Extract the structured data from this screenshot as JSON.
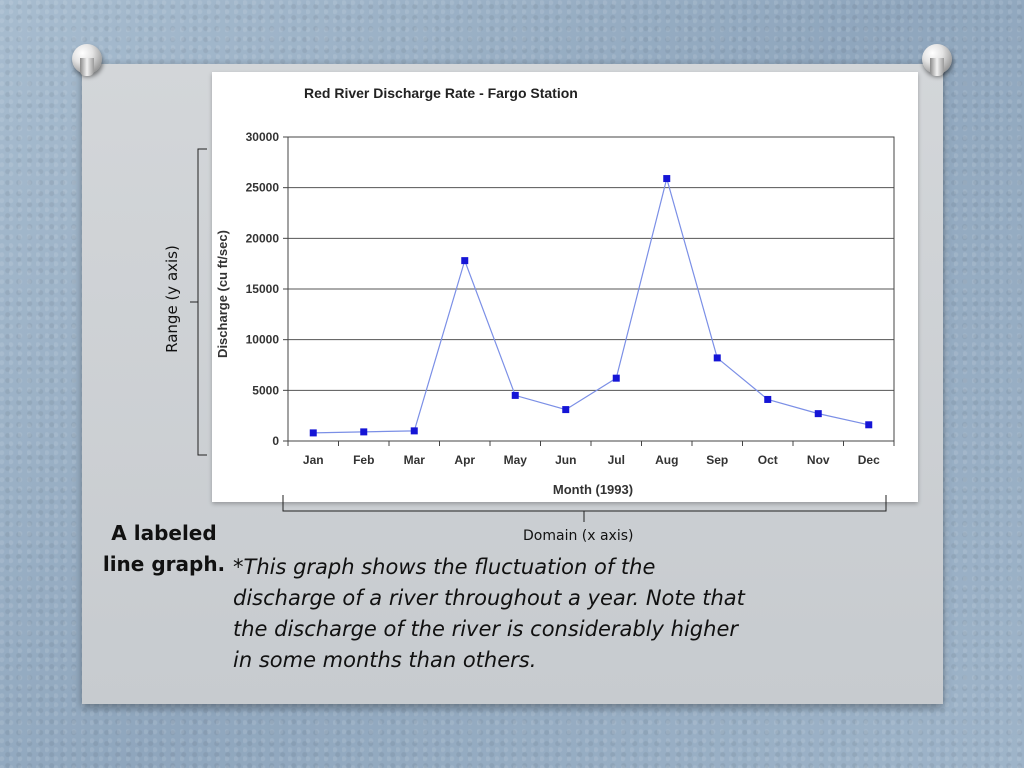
{
  "chart_data": {
    "type": "line",
    "title": "Red River Discharge Rate - Fargo Station",
    "xlabel": "Month (1993)",
    "ylabel": "Discharge (cu ft/sec)",
    "categories": [
      "Jan",
      "Feb",
      "Mar",
      "Apr",
      "May",
      "Jun",
      "Jul",
      "Aug",
      "Sep",
      "Oct",
      "Nov",
      "Dec"
    ],
    "values": [
      800,
      900,
      1000,
      17800,
      4500,
      3100,
      6200,
      25900,
      8200,
      4100,
      2700,
      1600
    ],
    "ylim": [
      0,
      30000
    ],
    "yticks": [
      "0",
      "5000",
      "10000",
      "15000",
      "20000",
      "25000",
      "30000"
    ],
    "grid": true,
    "line_color": "#7b8fe6",
    "marker_color": "#1515d6"
  },
  "annotations": {
    "range_label": "Range (y axis)",
    "domain_label": "Domain (x axis)"
  },
  "caption": {
    "title": "A labeled line graph.",
    "text": "*This graph shows the fluctuation of the discharge of a river throughout a year. Note that the discharge of the river is considerably higher in some months than others."
  }
}
